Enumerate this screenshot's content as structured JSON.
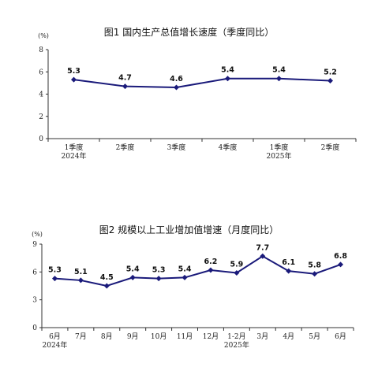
{
  "chart_data": [
    {
      "type": "line",
      "title": "图1   国内生产总值增长速度（季度同比）",
      "unit": "(%)",
      "categories": [
        "1季度",
        "2季度",
        "3季度",
        "4季度",
        "1季度",
        "2季度"
      ],
      "year_labels": [
        "2024年",
        "",
        "",
        "",
        "2025年",
        ""
      ],
      "values": [
        5.3,
        4.7,
        4.6,
        5.4,
        5.4,
        5.2
      ],
      "value_labels": [
        "5.3",
        "4.7",
        "4.6",
        "5.4",
        "5.4",
        "5.2"
      ],
      "ylim": [
        0,
        8
      ],
      "yticks": [
        "0",
        "2",
        "4",
        "6",
        "8"
      ],
      "grid": false,
      "color": "#1a1a7a"
    },
    {
      "type": "line",
      "title": "图2   规模以上工业增加值增速（月度同比）",
      "unit": "(%)",
      "categories": [
        "6月",
        "7月",
        "8月",
        "9月",
        "10月",
        "11月",
        "12月",
        "1-2月",
        "3月",
        "4月",
        "5月",
        "6月"
      ],
      "year_labels": [
        "2024年",
        "",
        "",
        "",
        "",
        "",
        "",
        "2025年",
        "",
        "",
        "",
        ""
      ],
      "values": [
        5.3,
        5.1,
        4.5,
        5.4,
        5.3,
        5.4,
        6.2,
        5.9,
        7.7,
        6.1,
        5.8,
        6.8
      ],
      "value_labels": [
        "5.3",
        "5.1",
        "4.5",
        "5.4",
        "5.3",
        "5.4",
        "6.2",
        "5.9",
        "7.7",
        "6.1",
        "5.8",
        "6.8"
      ],
      "ylim": [
        0,
        9
      ],
      "yticks": [
        "0",
        "3",
        "6",
        "9"
      ],
      "grid": false,
      "color": "#1a1a7a"
    }
  ]
}
